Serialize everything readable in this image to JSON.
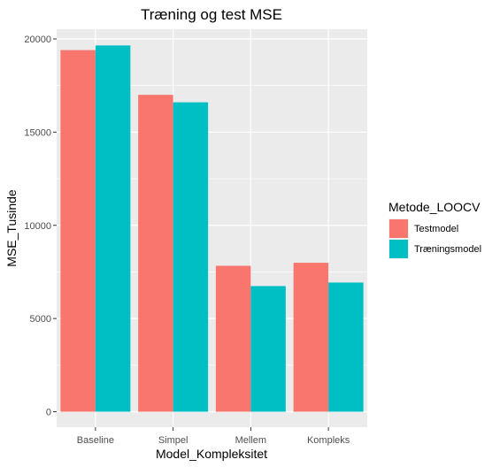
{
  "chart_data": {
    "type": "bar",
    "title": "Træning og test MSE",
    "xlabel": "Model_Kompleksitet",
    "ylabel": "MSE_Tusinde",
    "categories": [
      "Baseline",
      "Simpel",
      "Mellem",
      "Kompleks"
    ],
    "series": [
      {
        "name": "Testmodel",
        "values": [
          19400,
          17000,
          7830,
          7990
        ],
        "color": "#F8766D"
      },
      {
        "name": "Træningsmodel",
        "values": [
          19650,
          16600,
          6740,
          6930
        ],
        "color": "#00BFC4"
      }
    ],
    "ylim": [
      0,
      21000
    ],
    "yticks": [
      0,
      5000,
      10000,
      15000,
      20000
    ],
    "ytick_labels": [
      "0",
      "5000",
      "10000",
      "15000",
      "20000"
    ],
    "grid": true,
    "legend": {
      "title": "Metode_LOOCV",
      "position": "right"
    },
    "colors": {
      "panel": "#EBEBEB",
      "grid": "#FFFFFF",
      "tick": "#4d4d4d"
    }
  }
}
